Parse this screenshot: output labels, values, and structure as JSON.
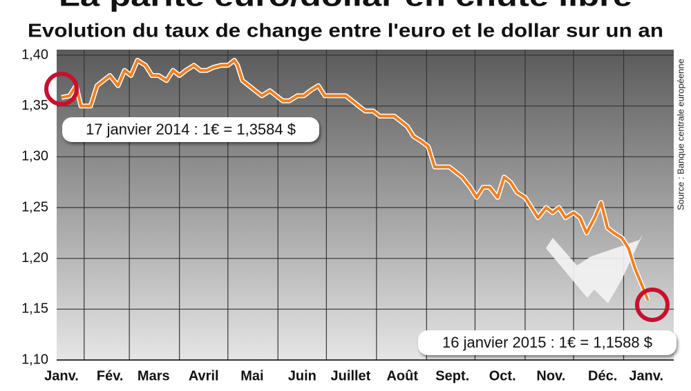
{
  "chart_data": {
    "type": "line",
    "title": "La parité euro/dollar en chute libre",
    "subtitle": "Evolution du taux de change entre l'euro et le dollar sur un an",
    "source": "Source : Banque centrale européenne",
    "annotations": [
      "17 janvier 2014 : 1€ = 1,3584 $",
      "16 janvier 2015 : 1€ = 1,1588 $"
    ],
    "color": "#f07f1e",
    "x": [
      17,
      22,
      26,
      29,
      35,
      39,
      43,
      47,
      52,
      56,
      60,
      64,
      69,
      73,
      77,
      82,
      86,
      90,
      94,
      99,
      103,
      107,
      111,
      116,
      120,
      124,
      126,
      129,
      133,
      137,
      141,
      146,
      150,
      154,
      158,
      163,
      167,
      171,
      176,
      180,
      184,
      188,
      193,
      197,
      201,
      205,
      210,
      214,
      218,
      223,
      227,
      231,
      235,
      240,
      244,
      248,
      252,
      257,
      261,
      265,
      270,
      274,
      278,
      282,
      287,
      291,
      295,
      299,
      304,
      308,
      312,
      317,
      321,
      325,
      329,
      334,
      338,
      342,
      347,
      351,
      355,
      359,
      364,
      368,
      372,
      376,
      380
    ],
    "values": [
      1.3584,
      1.36,
      1.37,
      1.35,
      1.35,
      1.37,
      1.375,
      1.38,
      1.37,
      1.385,
      1.38,
      1.395,
      1.39,
      1.38,
      1.38,
      1.375,
      1.385,
      1.38,
      1.385,
      1.39,
      1.385,
      1.385,
      1.388,
      1.39,
      1.39,
      1.395,
      1.39,
      1.375,
      1.37,
      1.365,
      1.36,
      1.365,
      1.36,
      1.355,
      1.355,
      1.36,
      1.36,
      1.365,
      1.37,
      1.36,
      1.36,
      1.36,
      1.36,
      1.355,
      1.35,
      1.345,
      1.345,
      1.34,
      1.34,
      1.34,
      1.335,
      1.33,
      1.32,
      1.315,
      1.31,
      1.29,
      1.29,
      1.29,
      1.285,
      1.28,
      1.27,
      1.26,
      1.27,
      1.27,
      1.26,
      1.28,
      1.275,
      1.265,
      1.26,
      1.25,
      1.24,
      1.25,
      1.245,
      1.25,
      1.24,
      1.245,
      1.24,
      1.225,
      1.24,
      1.255,
      1.23,
      1.225,
      1.22,
      1.21,
      1.19,
      1.175,
      1.1588
    ],
    "xlim": [
      14,
      396
    ],
    "xticks": [
      {
        "value": 17,
        "label": "Janv."
      },
      {
        "value": 47,
        "label": "Fév."
      },
      {
        "value": 74,
        "label": "Mars"
      },
      {
        "value": 105,
        "label": "Avril"
      },
      {
        "value": 135,
        "label": "Mai"
      },
      {
        "value": 166,
        "label": "Juin"
      },
      {
        "value": 196,
        "label": "Juillet"
      },
      {
        "value": 228,
        "label": "Août"
      },
      {
        "value": 259,
        "label": "Sept."
      },
      {
        "value": 290,
        "label": "Oct."
      },
      {
        "value": 320,
        "label": "Nov."
      },
      {
        "value": 352,
        "label": "Déc."
      },
      {
        "value": 379,
        "label": "Janv."
      }
    ],
    "xgrid": [
      31,
      59,
      90,
      120,
      151,
      181,
      212,
      243,
      273,
      304,
      334,
      365
    ],
    "ylim": [
      1.1,
      1.4
    ],
    "yticks": [
      {
        "value": 1.1,
        "label": "1,10"
      },
      {
        "value": 1.15,
        "label": "1,15"
      },
      {
        "value": 1.2,
        "label": "1,20"
      },
      {
        "value": 1.25,
        "label": "1,25"
      },
      {
        "value": 1.3,
        "label": "1,30"
      },
      {
        "value": 1.35,
        "label": "1,35"
      },
      {
        "value": 1.4,
        "label": "1,40"
      }
    ],
    "grid": true
  }
}
